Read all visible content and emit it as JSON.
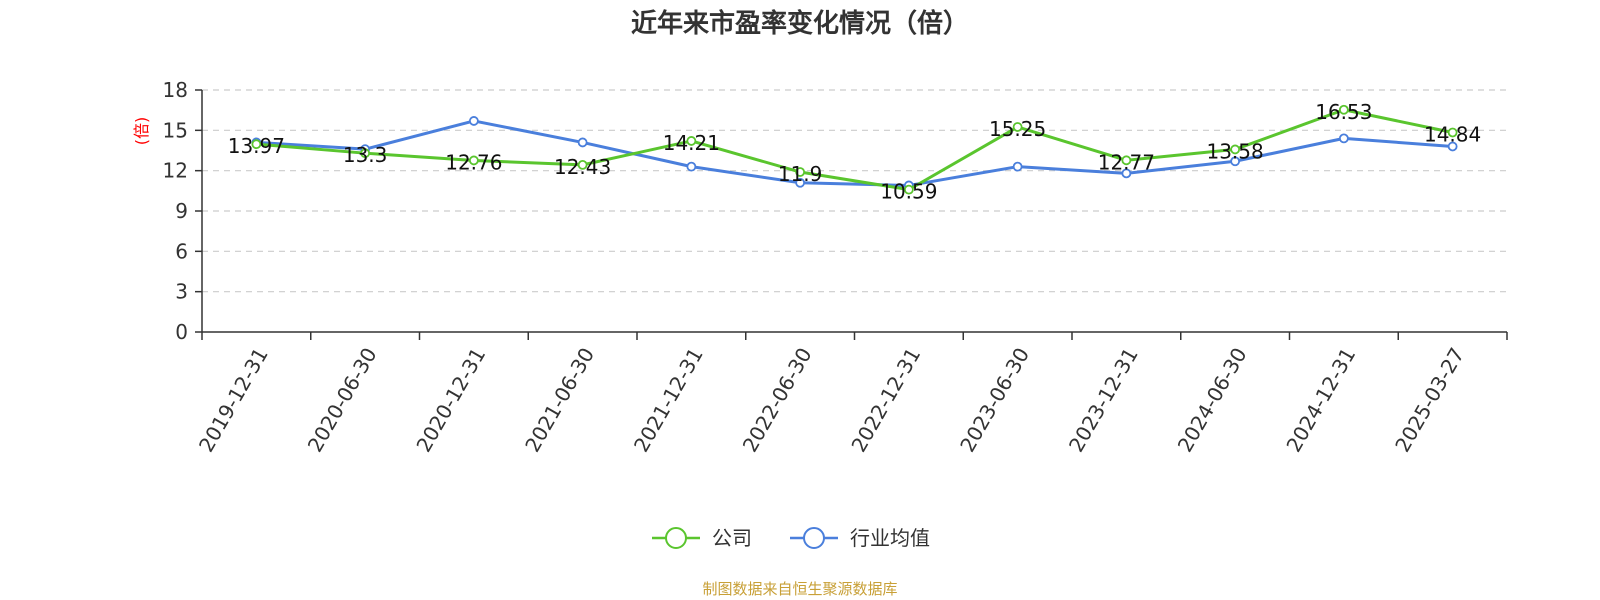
{
  "chart_data": {
    "type": "line",
    "title": "近年来市盈率变化情况（倍）",
    "ylabel": "(倍)",
    "xlabel": "",
    "ylim": [
      0,
      18
    ],
    "yticks": [
      0,
      3,
      6,
      9,
      12,
      15,
      18
    ],
    "grid": true,
    "legend_placement": "bottom",
    "categories": [
      "2019-12-31",
      "2020-06-30",
      "2020-12-31",
      "2021-06-30",
      "2021-12-31",
      "2022-06-30",
      "2022-12-31",
      "2023-06-30",
      "2023-12-31",
      "2024-06-30",
      "2024-12-31",
      "2025-03-27"
    ],
    "series": [
      {
        "name": "公司",
        "color": "#5ac52e",
        "show_labels": true,
        "values": [
          13.97,
          13.3,
          12.76,
          12.43,
          14.21,
          11.9,
          10.59,
          15.25,
          12.77,
          13.58,
          16.53,
          14.84
        ]
      },
      {
        "name": "行业均值",
        "color": "#4a7fdc",
        "show_labels": false,
        "values": [
          14.1,
          13.6,
          15.7,
          14.1,
          12.3,
          11.1,
          10.9,
          12.3,
          11.8,
          12.7,
          14.4,
          13.8
        ]
      }
    ],
    "source": "制图数据来自恒生聚源数据库"
  }
}
